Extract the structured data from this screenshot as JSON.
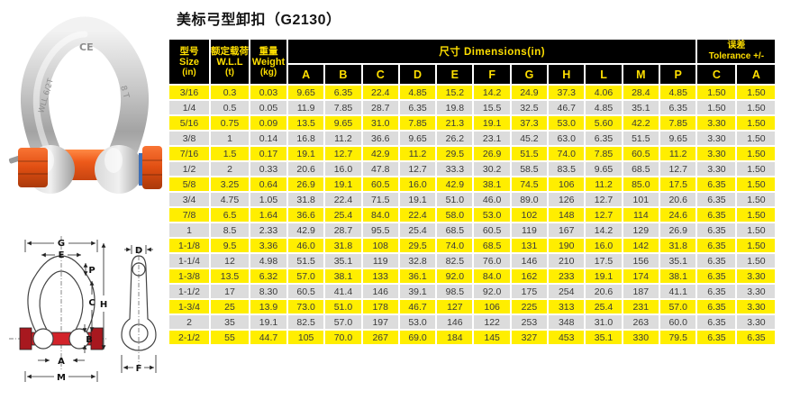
{
  "page": {
    "title": "美标弓型卸扣（G2130）"
  },
  "colors": {
    "row_yellow": "#ffee00",
    "row_gray": "#dcdcdc",
    "header_bg": "#000000",
    "header_text": "#ffdf00",
    "photo_pin_orange": "#e8571d",
    "diagram_pin_red": "#d2232a"
  },
  "photo": {
    "markings": {
      "top": "CE",
      "left_leg": "WLL 6/2T",
      "right_leg": "8 T"
    }
  },
  "diagram": {
    "labels": {
      "g": "G",
      "e": "E",
      "p": "P",
      "c": "C",
      "h": "H",
      "b": "B",
      "a": "A",
      "m": "M",
      "d": "D",
      "f": "F"
    }
  },
  "table": {
    "header": {
      "size": {
        "zh": "型号",
        "en": "Size",
        "unit": "(in)"
      },
      "wll": {
        "zh": "额定载荷",
        "en": "W.L.L",
        "unit": "(t)"
      },
      "weight": {
        "zh": "重量",
        "en": "Weight",
        "unit": "(kg)"
      },
      "dimensions_group": "尺寸  Dimensions(in)",
      "dimension_letters": [
        "A",
        "B",
        "C",
        "D",
        "E",
        "F",
        "G",
        "H",
        "L",
        "M",
        "P"
      ],
      "tolerance_group_zh": "误差",
      "tolerance_group_en": "Tolerance +/-",
      "tolerance_letters": [
        "C",
        "A"
      ]
    },
    "rows": [
      [
        "3/16",
        "0.3",
        "0.03",
        "9.65",
        "6.35",
        "22.4",
        "4.85",
        "15.2",
        "14.2",
        "24.9",
        "37.3",
        "4.06",
        "28.4",
        "4.85",
        "1.50",
        "1.50"
      ],
      [
        "1/4",
        "0.5",
        "0.05",
        "11.9",
        "7.85",
        "28.7",
        "6.35",
        "19.8",
        "15.5",
        "32.5",
        "46.7",
        "4.85",
        "35.1",
        "6.35",
        "1.50",
        "1.50"
      ],
      [
        "5/16",
        "0.75",
        "0.09",
        "13.5",
        "9.65",
        "31.0",
        "7.85",
        "21.3",
        "19.1",
        "37.3",
        "53.0",
        "5.60",
        "42.2",
        "7.85",
        "3.30",
        "1.50"
      ],
      [
        "3/8",
        "1",
        "0.14",
        "16.8",
        "11.2",
        "36.6",
        "9.65",
        "26.2",
        "23.1",
        "45.2",
        "63.0",
        "6.35",
        "51.5",
        "9.65",
        "3.30",
        "1.50"
      ],
      [
        "7/16",
        "1.5",
        "0.17",
        "19.1",
        "12.7",
        "42.9",
        "11.2",
        "29.5",
        "26.9",
        "51.5",
        "74.0",
        "7.85",
        "60.5",
        "11.2",
        "3.30",
        "1.50"
      ],
      [
        "1/2",
        "2",
        "0.33",
        "20.6",
        "16.0",
        "47.8",
        "12.7",
        "33.3",
        "30.2",
        "58.5",
        "83.5",
        "9.65",
        "68.5",
        "12.7",
        "3.30",
        "1.50"
      ],
      [
        "5/8",
        "3.25",
        "0.64",
        "26.9",
        "19.1",
        "60.5",
        "16.0",
        "42.9",
        "38.1",
        "74.5",
        "106",
        "11.2",
        "85.0",
        "17.5",
        "6.35",
        "1.50"
      ],
      [
        "3/4",
        "4.75",
        "1.05",
        "31.8",
        "22.4",
        "71.5",
        "19.1",
        "51.0",
        "46.0",
        "89.0",
        "126",
        "12.7",
        "101",
        "20.6",
        "6.35",
        "1.50"
      ],
      [
        "7/8",
        "6.5",
        "1.64",
        "36.6",
        "25.4",
        "84.0",
        "22.4",
        "58.0",
        "53.0",
        "102",
        "148",
        "12.7",
        "114",
        "24.6",
        "6.35",
        "1.50"
      ],
      [
        "1",
        "8.5",
        "2.33",
        "42.9",
        "28.7",
        "95.5",
        "25.4",
        "68.5",
        "60.5",
        "119",
        "167",
        "14.2",
        "129",
        "26.9",
        "6.35",
        "1.50"
      ],
      [
        "1-1/8",
        "9.5",
        "3.36",
        "46.0",
        "31.8",
        "108",
        "29.5",
        "74.0",
        "68.5",
        "131",
        "190",
        "16.0",
        "142",
        "31.8",
        "6.35",
        "1.50"
      ],
      [
        "1-1/4",
        "12",
        "4.98",
        "51.5",
        "35.1",
        "119",
        "32.8",
        "82.5",
        "76.0",
        "146",
        "210",
        "17.5",
        "156",
        "35.1",
        "6.35",
        "1.50"
      ],
      [
        "1-3/8",
        "13.5",
        "6.32",
        "57.0",
        "38.1",
        "133",
        "36.1",
        "92.0",
        "84.0",
        "162",
        "233",
        "19.1",
        "174",
        "38.1",
        "6.35",
        "3.30"
      ],
      [
        "1-1/2",
        "17",
        "8.30",
        "60.5",
        "41.4",
        "146",
        "39.1",
        "98.5",
        "92.0",
        "175",
        "254",
        "20.6",
        "187",
        "41.1",
        "6.35",
        "3.30"
      ],
      [
        "1-3/4",
        "25",
        "13.9",
        "73.0",
        "51.0",
        "178",
        "46.7",
        "127",
        "106",
        "225",
        "313",
        "25.4",
        "231",
        "57.0",
        "6.35",
        "3.30"
      ],
      [
        "2",
        "35",
        "19.1",
        "82.5",
        "57.0",
        "197",
        "53.0",
        "146",
        "122",
        "253",
        "348",
        "31.0",
        "263",
        "60.0",
        "6.35",
        "3.30"
      ],
      [
        "2-1/2",
        "55",
        "44.7",
        "105",
        "70.0",
        "267",
        "69.0",
        "184",
        "145",
        "327",
        "453",
        "35.1",
        "330",
        "79.5",
        "6.35",
        "6.35"
      ]
    ]
  }
}
